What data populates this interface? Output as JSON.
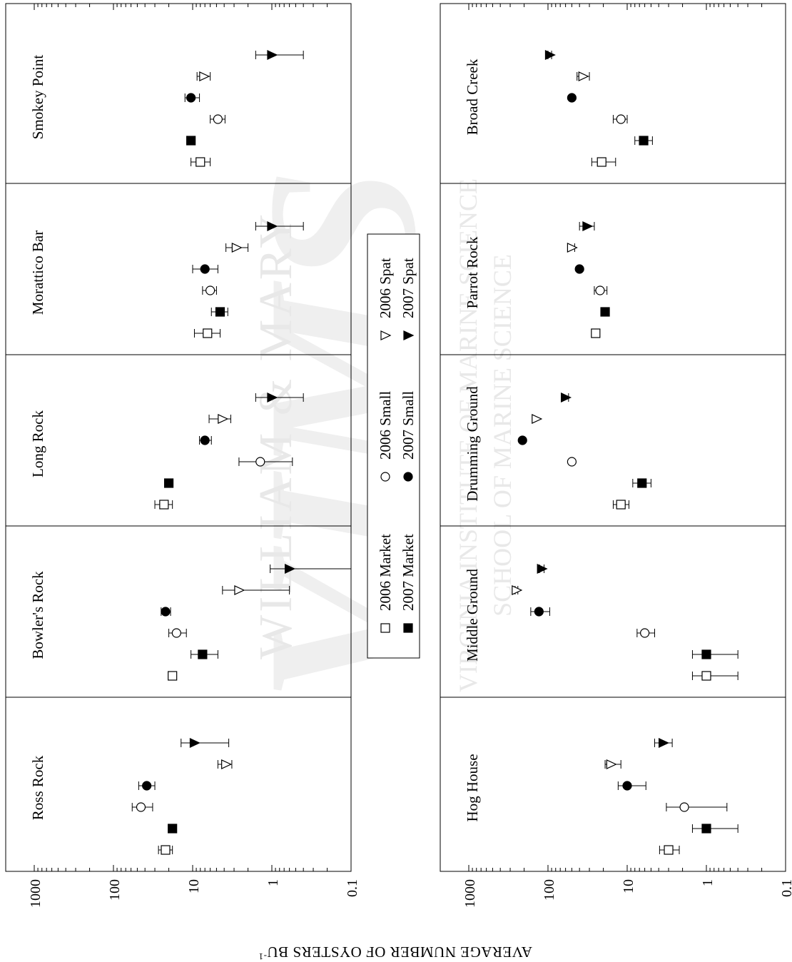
{
  "watermark": {
    "lines": [
      "WILLIAM & MARY",
      "VIRGINIA INSTITUTE OF MARINE SCIENCE",
      "SCHOOL OF MARINE SCIENCE"
    ],
    "logo_text": "VIMS",
    "color": "#e6e6e6"
  },
  "chart_data": {
    "type": "scatter",
    "orientation": "rotated 90 degrees clockwise",
    "ylabel": "AVERAGE NUMBER OF OYSTERS BU",
    "ylabel_superscript": "-1",
    "yscale": "log",
    "ylim": [
      0.1,
      1000
    ],
    "yticks": [
      {
        "value": 1000,
        "label": "1000"
      },
      {
        "value": 100,
        "label": "100"
      },
      {
        "value": 10,
        "label": "10"
      },
      {
        "value": 1,
        "label": "1"
      },
      {
        "value": 0.1,
        "label": "0.1"
      }
    ],
    "series": [
      {
        "name": "2006 Market",
        "marker": "square",
        "filled": false
      },
      {
        "name": "2007 Market",
        "marker": "square",
        "filled": true
      },
      {
        "name": "2006 Small",
        "marker": "circle",
        "filled": false
      },
      {
        "name": "2007 Small",
        "marker": "circle",
        "filled": true
      },
      {
        "name": "2006 Spat",
        "marker": "triangle",
        "filled": false
      },
      {
        "name": "2007 Spat",
        "marker": "triangle",
        "filled": true
      }
    ],
    "legend_position": "center",
    "panels": [
      {
        "name": "Ross Rock",
        "points": [
          {
            "mean": 22,
            "lo": 18,
            "hi": 27
          },
          {
            "mean": 18,
            "lo": 16,
            "hi": 20
          },
          {
            "mean": 45,
            "lo": 32,
            "hi": 58
          },
          {
            "mean": 38,
            "lo": 30,
            "hi": 48
          },
          {
            "mean": 3.8,
            "lo": 3.2,
            "hi": 4.8
          },
          {
            "mean": 9.5,
            "lo": 3.5,
            "hi": 14
          }
        ]
      },
      {
        "name": "Bowler's Rock",
        "points": [
          {
            "mean": 18,
            "lo": 16,
            "hi": 20
          },
          {
            "mean": 7.5,
            "lo": 4.8,
            "hi": 10.5
          },
          {
            "mean": 16,
            "lo": 12,
            "hi": 20
          },
          {
            "mean": 22,
            "lo": 19,
            "hi": 25
          },
          {
            "mean": 2.6,
            "lo": 0.6,
            "hi": 4.2
          },
          {
            "mean": 0.6,
            "lo": 0.1,
            "hi": 1.05
          }
        ]
      },
      {
        "name": "Long Rock",
        "points": [
          {
            "mean": 23,
            "lo": 18,
            "hi": 30
          },
          {
            "mean": 20,
            "lo": 20,
            "hi": 20
          },
          {
            "mean": 1.4,
            "lo": 0.55,
            "hi": 2.6
          },
          {
            "mean": 7,
            "lo": 5.8,
            "hi": 8.2
          },
          {
            "mean": 4.2,
            "lo": 3.3,
            "hi": 6.2
          },
          {
            "mean": 1,
            "lo": 0.4,
            "hi": 1.6
          }
        ]
      },
      {
        "name": "Morattico Bar",
        "points": [
          {
            "mean": 6.5,
            "lo": 4.5,
            "hi": 9.5
          },
          {
            "mean": 4.5,
            "lo": 3.6,
            "hi": 5.8
          },
          {
            "mean": 6,
            "lo": 5,
            "hi": 7.5
          },
          {
            "mean": 7,
            "lo": 4.8,
            "hi": 10
          },
          {
            "mean": 2.8,
            "lo": 2,
            "hi": 3.8
          },
          {
            "mean": 1,
            "lo": 0.4,
            "hi": 1.6
          }
        ]
      },
      {
        "name": "Smokey Point",
        "points": [
          {
            "mean": 8,
            "lo": 6,
            "hi": 10.5
          },
          {
            "mean": 10.5,
            "lo": 10.5,
            "hi": 10.5
          },
          {
            "mean": 4.8,
            "lo": 3.9,
            "hi": 6
          },
          {
            "mean": 10.5,
            "lo": 8.2,
            "hi": 12.5
          },
          {
            "mean": 7.2,
            "lo": 6,
            "hi": 8.8
          },
          {
            "mean": 1,
            "lo": 0.4,
            "hi": 1.6
          }
        ]
      },
      {
        "name": "Hog House",
        "points": [
          {
            "mean": 3,
            "lo": 2.2,
            "hi": 3.9
          },
          {
            "mean": 1,
            "lo": 0.4,
            "hi": 1.5
          },
          {
            "mean": 1.9,
            "lo": 0.55,
            "hi": 3.2
          },
          {
            "mean": 10,
            "lo": 5.8,
            "hi": 13
          },
          {
            "mean": 16,
            "lo": 12,
            "hi": 19
          },
          {
            "mean": 3.5,
            "lo": 2.7,
            "hi": 4.5
          }
        ]
      },
      {
        "name": "Middle Ground",
        "points": [
          {
            "mean": 1,
            "lo": 0.4,
            "hi": 1.5
          },
          {
            "mean": 1,
            "lo": 0.4,
            "hi": 1.5
          },
          {
            "mean": 6,
            "lo": 4.5,
            "hi": 7.5
          },
          {
            "mean": 130,
            "lo": 95,
            "hi": 165
          },
          {
            "mean": 250,
            "lo": 240,
            "hi": 260
          },
          {
            "mean": 120,
            "lo": 112,
            "hi": 128
          }
        ]
      },
      {
        "name": "Drumming Ground",
        "points": [
          {
            "mean": 12,
            "lo": 9.5,
            "hi": 15
          },
          {
            "mean": 6.5,
            "lo": 5,
            "hi": 8.5
          },
          {
            "mean": 50,
            "lo": 50,
            "hi": 50
          },
          {
            "mean": 210,
            "lo": 210,
            "hi": 210
          },
          {
            "mean": 140,
            "lo": 140,
            "hi": 140
          },
          {
            "mean": 60,
            "lo": 55,
            "hi": 66
          }
        ]
      },
      {
        "name": "Parrot Rock",
        "points": [
          {
            "mean": 25,
            "lo": 23,
            "hi": 27
          },
          {
            "mean": 19,
            "lo": 17.5,
            "hi": 21
          },
          {
            "mean": 22,
            "lo": 18,
            "hi": 26
          },
          {
            "mean": 40,
            "lo": 38,
            "hi": 42
          },
          {
            "mean": 50,
            "lo": 46,
            "hi": 56
          },
          {
            "mean": 32,
            "lo": 26,
            "hi": 40
          }
        ]
      },
      {
        "name": "Broad Creek",
        "points": [
          {
            "mean": 21,
            "lo": 14,
            "hi": 28
          },
          {
            "mean": 6.2,
            "lo": 4.8,
            "hi": 8
          },
          {
            "mean": 12,
            "lo": 10,
            "hi": 15
          },
          {
            "mean": 50,
            "lo": 50,
            "hi": 50
          },
          {
            "mean": 36,
            "lo": 30,
            "hi": 43
          },
          {
            "mean": 95,
            "lo": 90,
            "hi": 100
          }
        ]
      }
    ]
  }
}
